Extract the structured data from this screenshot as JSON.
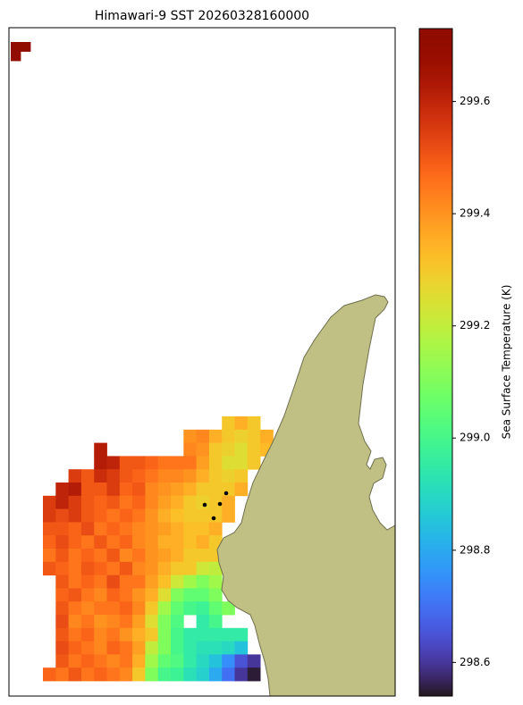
{
  "chart_data": {
    "type": "heatmap",
    "title": "Himawari-9 SST 20260328160000",
    "colormap": "turbo",
    "colorbar": {
      "label": "Sea Surface Temperature (K)",
      "lim": [
        298.54,
        299.73
      ],
      "ticks": [
        298.6,
        298.8,
        {
          "value": 299,
          "label": "299.0"
        },
        299.2,
        299.4,
        299.6
      ]
    },
    "fields": [
      {
        "z": [
          [
            299.72,
            299.72
          ],
          [
            299.7,
            null
          ]
        ]
      },
      {
        "z": [
          [
            null,
            null,
            null,
            null,
            null,
            null,
            null,
            null,
            null,
            null,
            null,
            null,
            null,
            null,
            299.3,
            299.35,
            299.3,
            null
          ],
          [
            null,
            null,
            null,
            null,
            null,
            null,
            null,
            null,
            null,
            null,
            null,
            299.4,
            299.42,
            299.35,
            299.3,
            299.28,
            299.3,
            299.35
          ],
          [
            null,
            null,
            null,
            null,
            299.62,
            null,
            null,
            null,
            null,
            null,
            null,
            299.42,
            299.4,
            299.3,
            299.28,
            299.25,
            299.3,
            299.33
          ],
          [
            null,
            null,
            null,
            null,
            299.62,
            299.6,
            299.5,
            299.5,
            299.48,
            299.45,
            299.45,
            299.45,
            299.38,
            299.3,
            299.25,
            299.25,
            299.3,
            null
          ],
          [
            null,
            null,
            299.55,
            299.5,
            299.58,
            299.55,
            299.5,
            299.48,
            299.45,
            299.42,
            299.42,
            299.4,
            299.35,
            299.3,
            299.28,
            299.3,
            null,
            null
          ],
          [
            null,
            299.6,
            299.62,
            299.5,
            299.5,
            299.55,
            299.48,
            299.5,
            299.42,
            299.4,
            299.38,
            299.35,
            299.3,
            299.3,
            299.3,
            299.35,
            null,
            null
          ],
          [
            299.55,
            299.6,
            299.55,
            299.5,
            299.48,
            299.5,
            299.45,
            299.48,
            299.42,
            299.38,
            299.35,
            299.3,
            299.28,
            299.3,
            299.35,
            null,
            null,
            null
          ],
          [
            299.55,
            299.52,
            299.55,
            299.5,
            299.48,
            299.45,
            299.48,
            299.45,
            299.4,
            299.35,
            299.32,
            299.3,
            299.3,
            299.3,
            299.35,
            null,
            null,
            null
          ],
          [
            299.5,
            299.5,
            299.48,
            299.52,
            299.45,
            299.48,
            299.45,
            299.42,
            299.4,
            299.38,
            299.35,
            299.32,
            299.32,
            299.35,
            null,
            null,
            null,
            null
          ],
          [
            299.48,
            299.52,
            299.48,
            299.45,
            299.5,
            299.45,
            299.48,
            299.42,
            299.4,
            299.35,
            299.35,
            299.32,
            299.35,
            299.3,
            null,
            null,
            null,
            null
          ],
          [
            299.45,
            299.5,
            299.45,
            299.48,
            299.45,
            299.5,
            299.42,
            299.45,
            299.4,
            299.38,
            299.35,
            299.3,
            299.3,
            299.3,
            null,
            null,
            null,
            null
          ],
          [
            299.5,
            299.48,
            299.45,
            299.5,
            299.48,
            299.45,
            299.5,
            299.42,
            299.4,
            299.35,
            299.3,
            299.3,
            299.22,
            299.2,
            null,
            null,
            null,
            null
          ],
          [
            null,
            299.5,
            299.45,
            299.48,
            299.45,
            299.52,
            299.45,
            299.45,
            299.38,
            299.32,
            299.22,
            299.15,
            299.1,
            299.15,
            null,
            null,
            null,
            null
          ],
          [
            null,
            299.48,
            299.5,
            299.45,
            299.42,
            299.48,
            299.45,
            299.4,
            299.35,
            299.25,
            299.1,
            299.05,
            299.05,
            299.1,
            null,
            null,
            null,
            null
          ],
          [
            null,
            299.5,
            299.45,
            299.42,
            299.45,
            299.45,
            299.48,
            299.42,
            299.3,
            299.15,
            299.05,
            299.0,
            298.98,
            299.05,
            299.1,
            null,
            null,
            null
          ],
          [
            null,
            299.52,
            299.42,
            299.45,
            299.4,
            299.42,
            299.45,
            299.38,
            299.25,
            299.1,
            299.02,
            null,
            298.95,
            299.0,
            null,
            null,
            null,
            null
          ],
          [
            null,
            299.5,
            299.45,
            299.48,
            299.42,
            299.45,
            299.4,
            299.35,
            299.3,
            299.1,
            299.0,
            298.95,
            298.95,
            298.95,
            298.95,
            298.95,
            null,
            null
          ],
          [
            null,
            299.52,
            299.48,
            299.45,
            299.42,
            299.48,
            299.45,
            299.38,
            299.2,
            299.1,
            299.0,
            298.95,
            298.92,
            298.92,
            298.9,
            298.85,
            null,
            null
          ],
          [
            null,
            299.5,
            299.45,
            299.48,
            299.45,
            299.42,
            299.45,
            299.35,
            299.15,
            299.05,
            299.02,
            298.95,
            298.9,
            298.85,
            298.75,
            298.65,
            298.6,
            null
          ],
          [
            299.48,
            299.45,
            299.5,
            299.45,
            299.48,
            299.45,
            299.42,
            299.3,
            299.1,
            299.0,
            298.98,
            298.92,
            298.88,
            298.8,
            298.7,
            298.6,
            298.55,
            null
          ]
        ]
      }
    ]
  }
}
